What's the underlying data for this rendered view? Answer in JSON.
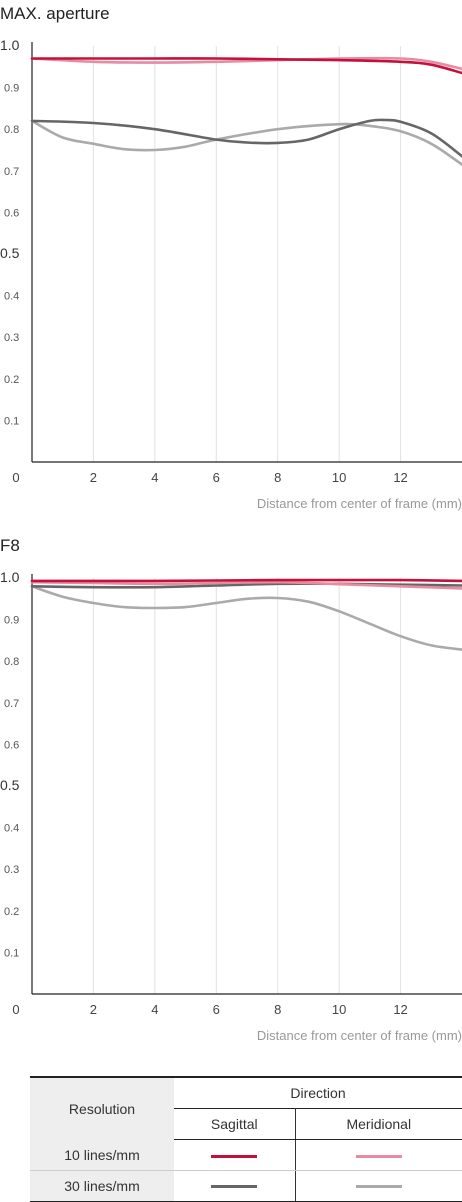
{
  "colors": {
    "sag10": "#c4103c",
    "mer10": "#e88aa2",
    "sag30": "#666666",
    "mer30": "#aaaaaa",
    "grid": "#e2e2e2",
    "axis": "#222222"
  },
  "chart_data": [
    {
      "type": "line",
      "title": "MAX. aperture",
      "xlabel": "Distance from center of frame (mm)",
      "xlim": [
        0,
        14
      ],
      "ylim": [
        0,
        1.0
      ],
      "x_ticks": [
        "0",
        "2",
        "4",
        "6",
        "8",
        "10",
        "12"
      ],
      "y_ticks": [
        "1.0",
        "0.9",
        "0.8",
        "0.7",
        "0.6",
        "0.5",
        "0.4",
        "0.3",
        "0.2",
        "0.1"
      ],
      "series": [
        {
          "key": "sag10",
          "x": [
            0,
            2,
            4,
            6,
            8,
            10,
            12,
            13,
            14
          ],
          "values": [
            0.97,
            0.97,
            0.97,
            0.97,
            0.968,
            0.966,
            0.962,
            0.955,
            0.935
          ]
        },
        {
          "key": "mer10",
          "x": [
            0,
            2,
            4,
            6,
            8,
            10,
            12,
            13,
            14
          ],
          "values": [
            0.97,
            0.962,
            0.96,
            0.962,
            0.966,
            0.97,
            0.97,
            0.962,
            0.945
          ]
        },
        {
          "key": "sag30",
          "x": [
            0,
            2,
            4,
            6,
            7,
            8,
            9,
            10,
            11,
            11.5,
            12,
            13,
            14
          ],
          "values": [
            0.82,
            0.815,
            0.8,
            0.775,
            0.768,
            0.767,
            0.775,
            0.8,
            0.82,
            0.822,
            0.818,
            0.79,
            0.735
          ]
        },
        {
          "key": "mer30",
          "x": [
            0,
            1,
            2,
            3,
            4,
            5,
            6,
            8,
            10,
            11,
            12,
            13,
            14
          ],
          "values": [
            0.82,
            0.78,
            0.765,
            0.752,
            0.75,
            0.758,
            0.775,
            0.8,
            0.812,
            0.808,
            0.795,
            0.765,
            0.715
          ]
        }
      ]
    },
    {
      "type": "line",
      "title": "F8",
      "xlabel": "Distance from center of frame (mm)",
      "xlim": [
        0,
        14
      ],
      "ylim": [
        0,
        1.0
      ],
      "x_ticks": [
        "0",
        "2",
        "4",
        "6",
        "8",
        "10",
        "12"
      ],
      "y_ticks": [
        "1.0",
        "0.9",
        "0.8",
        "0.7",
        "0.6",
        "0.5",
        "0.4",
        "0.3",
        "0.2",
        "0.1"
      ],
      "series": [
        {
          "key": "sag10",
          "x": [
            0,
            2,
            4,
            6,
            8,
            10,
            12,
            14
          ],
          "values": [
            0.993,
            0.993,
            0.993,
            0.994,
            0.995,
            0.995,
            0.995,
            0.993
          ]
        },
        {
          "key": "mer10",
          "x": [
            0,
            2,
            4,
            6,
            8,
            10,
            12,
            14
          ],
          "values": [
            0.99,
            0.988,
            0.986,
            0.988,
            0.99,
            0.985,
            0.98,
            0.975
          ]
        },
        {
          "key": "sag30",
          "x": [
            0,
            2,
            4,
            6,
            8,
            10,
            12,
            14
          ],
          "values": [
            0.98,
            0.978,
            0.978,
            0.982,
            0.986,
            0.986,
            0.984,
            0.982
          ]
        },
        {
          "key": "mer30",
          "x": [
            0,
            1,
            2,
            3,
            4,
            5,
            6,
            7,
            8,
            9,
            10,
            11,
            12,
            13,
            14
          ],
          "values": [
            0.98,
            0.955,
            0.94,
            0.93,
            0.928,
            0.93,
            0.94,
            0.95,
            0.952,
            0.943,
            0.92,
            0.89,
            0.86,
            0.838,
            0.828
          ]
        }
      ]
    }
  ],
  "legend": {
    "resolution_header": "Resolution",
    "direction_header": "Direction",
    "sagittal": "Sagittal",
    "meridional": "Meridional",
    "rows": [
      {
        "label": "10 lines/mm",
        "sag": "sag10",
        "mer": "mer10"
      },
      {
        "label": "30 lines/mm",
        "sag": "sag30",
        "mer": "mer30"
      }
    ]
  }
}
